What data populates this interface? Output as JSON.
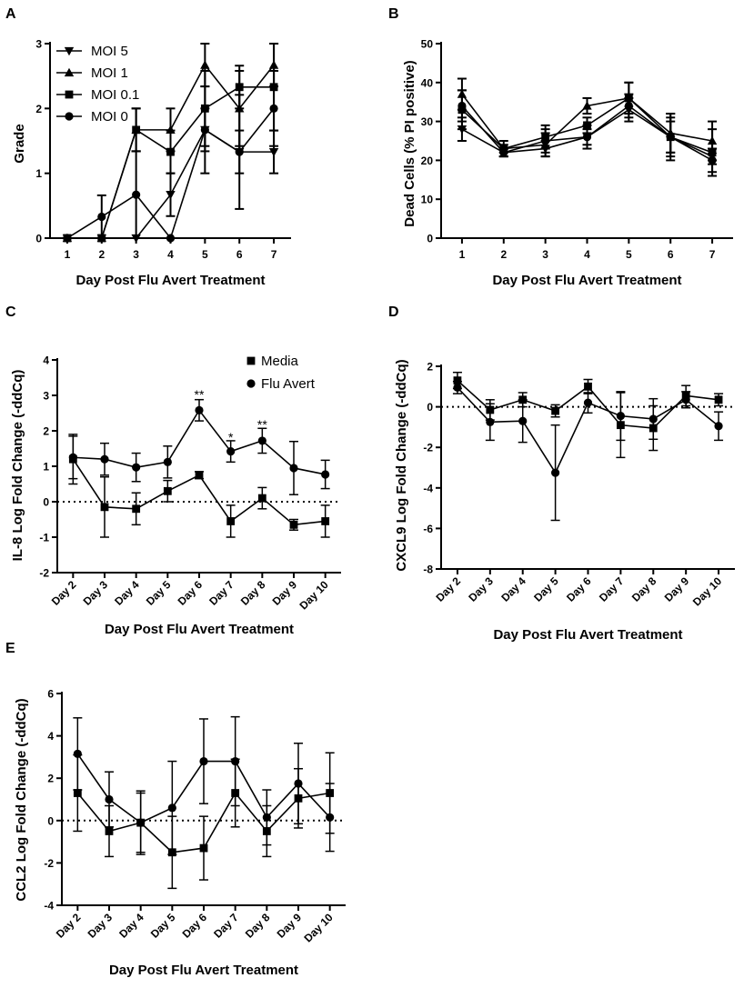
{
  "colors": {
    "ink": "#000000",
    "background": "#ffffff"
  },
  "chart_data": [
    {
      "panel": "A",
      "type": "line",
      "xlabel": "Day Post Flu Avert Treatment",
      "ylabel": "Grade",
      "x": [
        1,
        2,
        3,
        4,
        5,
        6,
        7
      ],
      "x_ticks": [
        "1",
        "2",
        "3",
        "4",
        "5",
        "6",
        "7"
      ],
      "xlim": [
        0.5,
        7.5
      ],
      "ylim": [
        0,
        3
      ],
      "y_ticks": [
        "0",
        "1",
        "2",
        "3"
      ],
      "legend_position": "top-left",
      "series": [
        {
          "name": "MOI 5",
          "marker": "triangle-down",
          "values": [
            0,
            0,
            0,
            0.67,
            1.67,
            1.33,
            1.33
          ],
          "errors": [
            0,
            0,
            0,
            0.33,
            0.33,
            0.33,
            0.33
          ]
        },
        {
          "name": "MOI 1",
          "marker": "triangle-up",
          "values": [
            0,
            0,
            1.67,
            1.67,
            2.67,
            2.0,
            2.67
          ],
          "errors": [
            0,
            0,
            0.33,
            0.33,
            0.33,
            0.58,
            0.33
          ]
        },
        {
          "name": "MOI 0.1",
          "marker": "square",
          "values": [
            0,
            0,
            1.67,
            1.33,
            2.0,
            2.33,
            2.33
          ],
          "errors": [
            0,
            0,
            0.33,
            0.33,
            0.58,
            0.33,
            0.67
          ]
        },
        {
          "name": "MOI 0",
          "marker": "circle",
          "values": [
            0,
            0.33,
            0.67,
            0,
            1.67,
            1.33,
            2.0
          ],
          "errors": [
            0,
            0.33,
            0.67,
            0,
            0.67,
            0.88,
            0.58
          ]
        }
      ]
    },
    {
      "panel": "B",
      "type": "line",
      "xlabel": "Day Post Flu Avert Treatment",
      "ylabel": "Dead Cells (% PI positive)",
      "x": [
        1,
        2,
        3,
        4,
        5,
        6,
        7
      ],
      "x_ticks": [
        "1",
        "2",
        "3",
        "4",
        "5",
        "6",
        "7"
      ],
      "xlim": [
        0.5,
        7.5
      ],
      "ylim": [
        0,
        50
      ],
      "y_ticks": [
        "0",
        "10",
        "20",
        "30",
        "40",
        "50"
      ],
      "series": [
        {
          "name": "MOI 5",
          "marker": "triangle-down",
          "values": [
            28,
            22,
            23,
            26,
            33,
            26,
            21
          ],
          "errors": [
            3,
            1,
            2,
            2,
            3,
            4,
            2
          ]
        },
        {
          "name": "MOI 1",
          "marker": "triangle-up",
          "values": [
            37,
            23,
            24,
            34,
            36,
            27,
            25
          ],
          "errors": [
            4,
            1,
            3,
            2,
            4,
            5,
            5
          ]
        },
        {
          "name": "MOI 0.1",
          "marker": "square",
          "values": [
            33,
            23,
            26,
            29,
            36,
            26,
            22
          ],
          "errors": [
            5,
            2,
            3,
            2,
            4,
            6,
            6
          ]
        },
        {
          "name": "MOI 0",
          "marker": "circle",
          "values": [
            34,
            22,
            25,
            26,
            34,
            26,
            20
          ],
          "errors": [
            4,
            1,
            3,
            3,
            3,
            5,
            3
          ]
        }
      ]
    },
    {
      "panel": "C",
      "type": "line",
      "xlabel": "Day Post Flu Avert Treatment",
      "ylabel": "IL-8 Log Fold Change (-ddCq)",
      "categories": [
        "Day 2",
        "Day 3",
        "Day 4",
        "Day 5",
        "Day 6",
        "Day 7",
        "Day 8",
        "Day 9",
        "Day 10"
      ],
      "ylim": [
        -2,
        4
      ],
      "y_ticks": [
        "-2",
        "-1",
        "0",
        "1",
        "2",
        "3",
        "4"
      ],
      "baseline": 0,
      "legend_position": "top-right",
      "series": [
        {
          "name": "Media",
          "marker": "square",
          "values": [
            1.2,
            -0.15,
            -0.2,
            0.3,
            0.75,
            -0.55,
            0.1,
            -0.65,
            -0.55
          ],
          "errors": [
            0.7,
            0.85,
            0.45,
            0.3,
            0.1,
            0.45,
            0.3,
            0.15,
            0.45
          ]
        },
        {
          "name": "Flu Avert",
          "marker": "circle",
          "values": [
            1.25,
            1.2,
            0.97,
            1.12,
            2.58,
            1.42,
            1.72,
            0.95,
            0.77
          ],
          "errors": [
            0.6,
            0.45,
            0.4,
            0.45,
            0.3,
            0.3,
            0.35,
            0.75,
            0.4
          ]
        }
      ],
      "annotations": [
        {
          "text": "**",
          "category": "Day 6",
          "y": 3.0
        },
        {
          "text": "*",
          "category": "Day 7",
          "y": 1.8
        },
        {
          "text": "**",
          "category": "Day 8",
          "y": 2.15
        }
      ]
    },
    {
      "panel": "D",
      "type": "line",
      "xlabel": "Day Post Flu Avert Treatment",
      "ylabel": "CXCL9 Log Fold Change (-ddCq)",
      "categories": [
        "Day 2",
        "Day 3",
        "Day 4",
        "Day 5",
        "Day 6",
        "Day 7",
        "Day 8",
        "Day 9",
        "Day 10"
      ],
      "ylim": [
        -8,
        2
      ],
      "y_ticks": [
        "-8",
        "-6",
        "-4",
        "-2",
        "0",
        "2"
      ],
      "baseline": 0,
      "series": [
        {
          "name": "Media",
          "marker": "square",
          "values": [
            1.3,
            -0.15,
            0.35,
            -0.2,
            1.0,
            -0.9,
            -1.05,
            0.55,
            0.35
          ],
          "errors": [
            0.4,
            0.5,
            0.35,
            0.3,
            0.35,
            1.6,
            1.1,
            0.5,
            0.3
          ]
        },
        {
          "name": "Flu Avert",
          "marker": "circle",
          "values": [
            0.95,
            -0.75,
            -0.7,
            -3.25,
            0.2,
            -0.45,
            -0.6,
            0.35,
            -0.95
          ],
          "errors": [
            0.3,
            0.9,
            1.05,
            2.35,
            0.5,
            1.2,
            1.0,
            0.4,
            0.7
          ]
        }
      ]
    },
    {
      "panel": "E",
      "type": "line",
      "xlabel": "Day Post Flu Avert Treatment",
      "ylabel": "CCL2 Log Fold Change (-ddCq)",
      "categories": [
        "Day 2",
        "Day 3",
        "Day 4",
        "Day 5",
        "Day 6",
        "Day 7",
        "Day 8",
        "Day 9",
        "Day 10"
      ],
      "ylim": [
        -4,
        6
      ],
      "y_ticks": [
        "-4",
        "-2",
        "0",
        "2",
        "4",
        "6"
      ],
      "baseline": 0,
      "series": [
        {
          "name": "Media",
          "marker": "square",
          "values": [
            1.3,
            -0.5,
            -0.1,
            -1.5,
            -1.3,
            1.3,
            -0.5,
            1.05,
            1.3
          ],
          "errors": [
            1.8,
            1.2,
            1.5,
            1.7,
            1.5,
            1.6,
            1.2,
            1.4,
            1.9
          ]
        },
        {
          "name": "Flu Avert",
          "marker": "circle",
          "values": [
            3.15,
            1.0,
            -0.1,
            0.6,
            2.8,
            2.8,
            0.15,
            1.75,
            0.15
          ],
          "errors": [
            1.7,
            1.3,
            1.4,
            2.2,
            2.0,
            2.1,
            1.3,
            1.9,
            1.6
          ]
        }
      ]
    }
  ]
}
